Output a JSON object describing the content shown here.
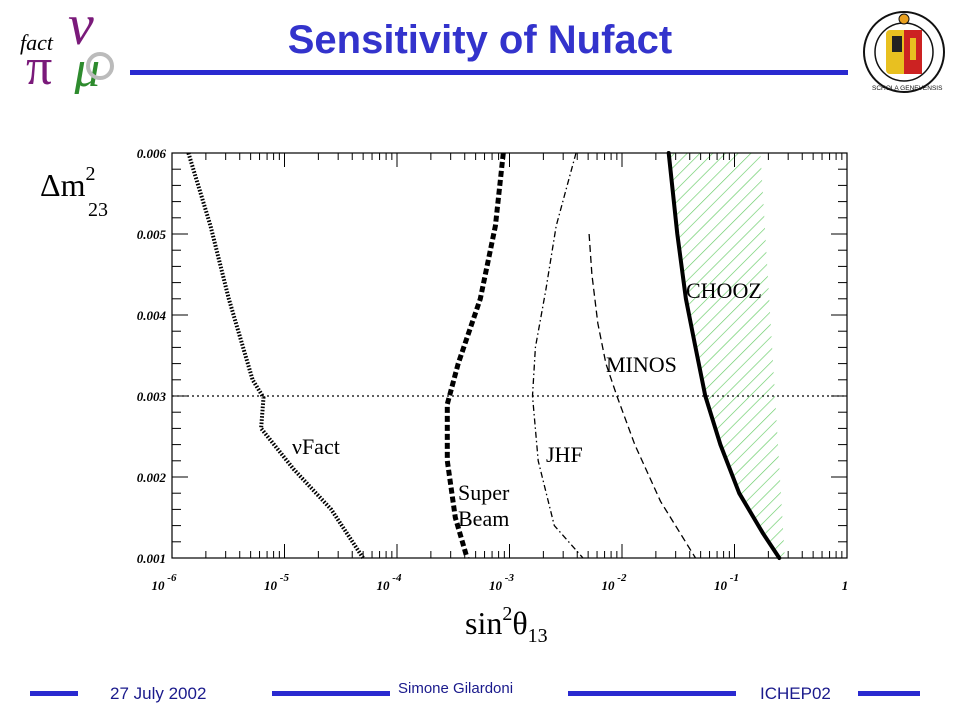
{
  "header": {
    "title": "Sensitivity of  Nufact",
    "logo_left_text": "fact",
    "logo_right_text": "SCHOLA GENEVENSIS"
  },
  "footer": {
    "date": "27 July 2002",
    "author": "Simone Gilardoni",
    "conference": "ICHEP02"
  },
  "colors": {
    "title": "#3333cc",
    "rule": "#2a2ad0",
    "hatch": "#66cc66"
  },
  "chart_data": {
    "type": "line",
    "x_scale": "log",
    "xlim": [
      1e-06,
      1
    ],
    "ylim": [
      0.001,
      0.006
    ],
    "x_ticks": [
      {
        "value": 1e-06,
        "base": "10",
        "exp": "-6"
      },
      {
        "value": 1e-05,
        "base": "10",
        "exp": "-5"
      },
      {
        "value": 0.0001,
        "base": "10",
        "exp": "-4"
      },
      {
        "value": 0.001,
        "base": "10",
        "exp": "-3"
      },
      {
        "value": 0.01,
        "base": "10",
        "exp": "-2"
      },
      {
        "value": 0.1,
        "base": "10",
        "exp": "-1"
      },
      {
        "value": 1,
        "base": "1",
        "exp": ""
      }
    ],
    "y_ticks": [
      "0.001",
      "0.002",
      "0.003",
      "0.004",
      "0.005",
      "0.006"
    ],
    "xlabel": {
      "main": "sin",
      "sup": "2",
      "theta": "θ",
      "sub": "13"
    },
    "ylabel": {
      "main": "Δm",
      "sup": "2",
      "sub": "23"
    },
    "reference_line_y": 0.003,
    "series": [
      {
        "name": "νFact",
        "style": "dotted",
        "points": [
          [
            1.4e-06,
            0.006
          ],
          [
            2.2e-06,
            0.0051
          ],
          [
            3.2e-06,
            0.0042
          ],
          [
            5.2e-06,
            0.0032
          ],
          [
            6.5e-06,
            0.00298
          ],
          [
            6.2e-06,
            0.0026
          ],
          [
            1.2e-05,
            0.0021
          ],
          [
            2.6e-05,
            0.0016
          ],
          [
            5e-05,
            0.001
          ]
        ]
      },
      {
        "name": "Super Beam",
        "style": "dashed-thick",
        "points": [
          [
            0.00088,
            0.006
          ],
          [
            0.00075,
            0.0051
          ],
          [
            0.00055,
            0.0042
          ],
          [
            0.00035,
            0.0034
          ],
          [
            0.00028,
            0.0029
          ],
          [
            0.00028,
            0.0022
          ],
          [
            0.00033,
            0.0015
          ],
          [
            0.00042,
            0.001
          ]
        ]
      },
      {
        "name": "JHF",
        "style": "dashdot",
        "points": [
          [
            0.0039,
            0.006
          ],
          [
            0.0026,
            0.0051
          ],
          [
            0.0021,
            0.0043
          ],
          [
            0.0017,
            0.0036
          ],
          [
            0.0016,
            0.003
          ],
          [
            0.0018,
            0.0022
          ],
          [
            0.0025,
            0.0014
          ],
          [
            0.0045,
            0.001
          ]
        ]
      },
      {
        "name": "MINOS",
        "style": "dashed-thin",
        "points": [
          [
            0.0051,
            0.005
          ],
          [
            0.0054,
            0.0045
          ],
          [
            0.0061,
            0.0039
          ],
          [
            0.0072,
            0.0034
          ],
          [
            0.009,
            0.003
          ],
          [
            0.013,
            0.0024
          ],
          [
            0.022,
            0.0017
          ],
          [
            0.045,
            0.001
          ]
        ]
      },
      {
        "name": "CHOOZ",
        "style": "solid-thick",
        "points": [
          [
            0.026,
            0.006
          ],
          [
            0.031,
            0.005
          ],
          [
            0.037,
            0.0042
          ],
          [
            0.045,
            0.0036
          ],
          [
            0.055,
            0.003
          ],
          [
            0.075,
            0.0024
          ],
          [
            0.11,
            0.0018
          ],
          [
            0.18,
            0.0013
          ],
          [
            0.25,
            0.001
          ]
        ]
      }
    ],
    "excluded_region": {
      "label": "CHOOZ",
      "x_right_top": 0.17,
      "x_right_bottom": 0.28
    },
    "labels": {
      "nufact": "νFact",
      "superbeam_line1": "Super",
      "superbeam_line2": "Beam",
      "jhf": "JHF",
      "minos": "MINOS",
      "chooz": "CHOOZ"
    }
  }
}
